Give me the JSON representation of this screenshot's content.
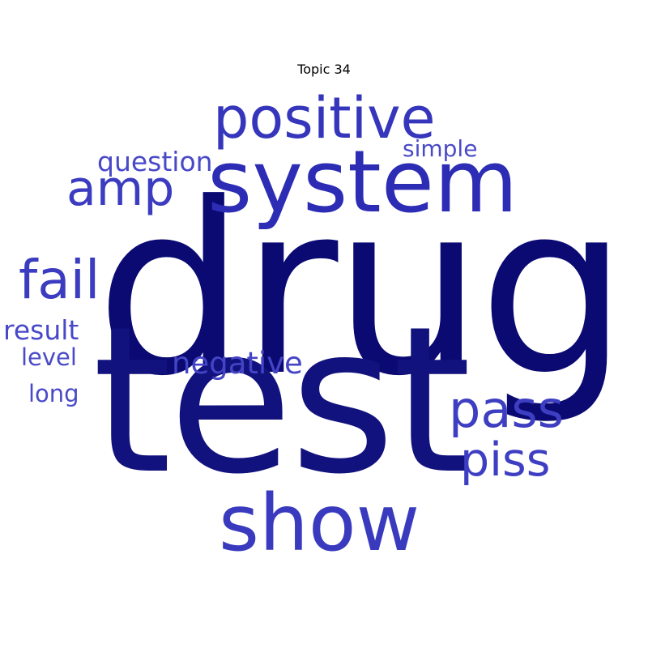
{
  "title": "Topic 34",
  "colors": {
    "darkest": "#0a0a72",
    "dark": "#12127e",
    "mid": "#2c2cb4",
    "light": "#3c3cc0",
    "lighter": "#4848c8"
  },
  "words": [
    {
      "text": "drug",
      "color": "#0a0a72"
    },
    {
      "text": "test",
      "color": "#12127e"
    },
    {
      "text": "system",
      "color": "#2c2cb4"
    },
    {
      "text": "positive",
      "color": "#3636bc"
    },
    {
      "text": "show",
      "color": "#3a3abf"
    },
    {
      "text": "pass",
      "color": "#3e3ec2"
    },
    {
      "text": "piss",
      "color": "#3e3ec2"
    },
    {
      "text": "amp",
      "color": "#3c3cc0"
    },
    {
      "text": "fail",
      "color": "#3c3cc0"
    },
    {
      "text": "negative",
      "color": "#4444c6"
    },
    {
      "text": "question",
      "color": "#4848c8"
    },
    {
      "text": "result",
      "color": "#4848c8"
    },
    {
      "text": "level",
      "color": "#4a4ac8"
    },
    {
      "text": "long",
      "color": "#4a4ac8"
    },
    {
      "text": "simple",
      "color": "#4a4ac8"
    }
  ]
}
